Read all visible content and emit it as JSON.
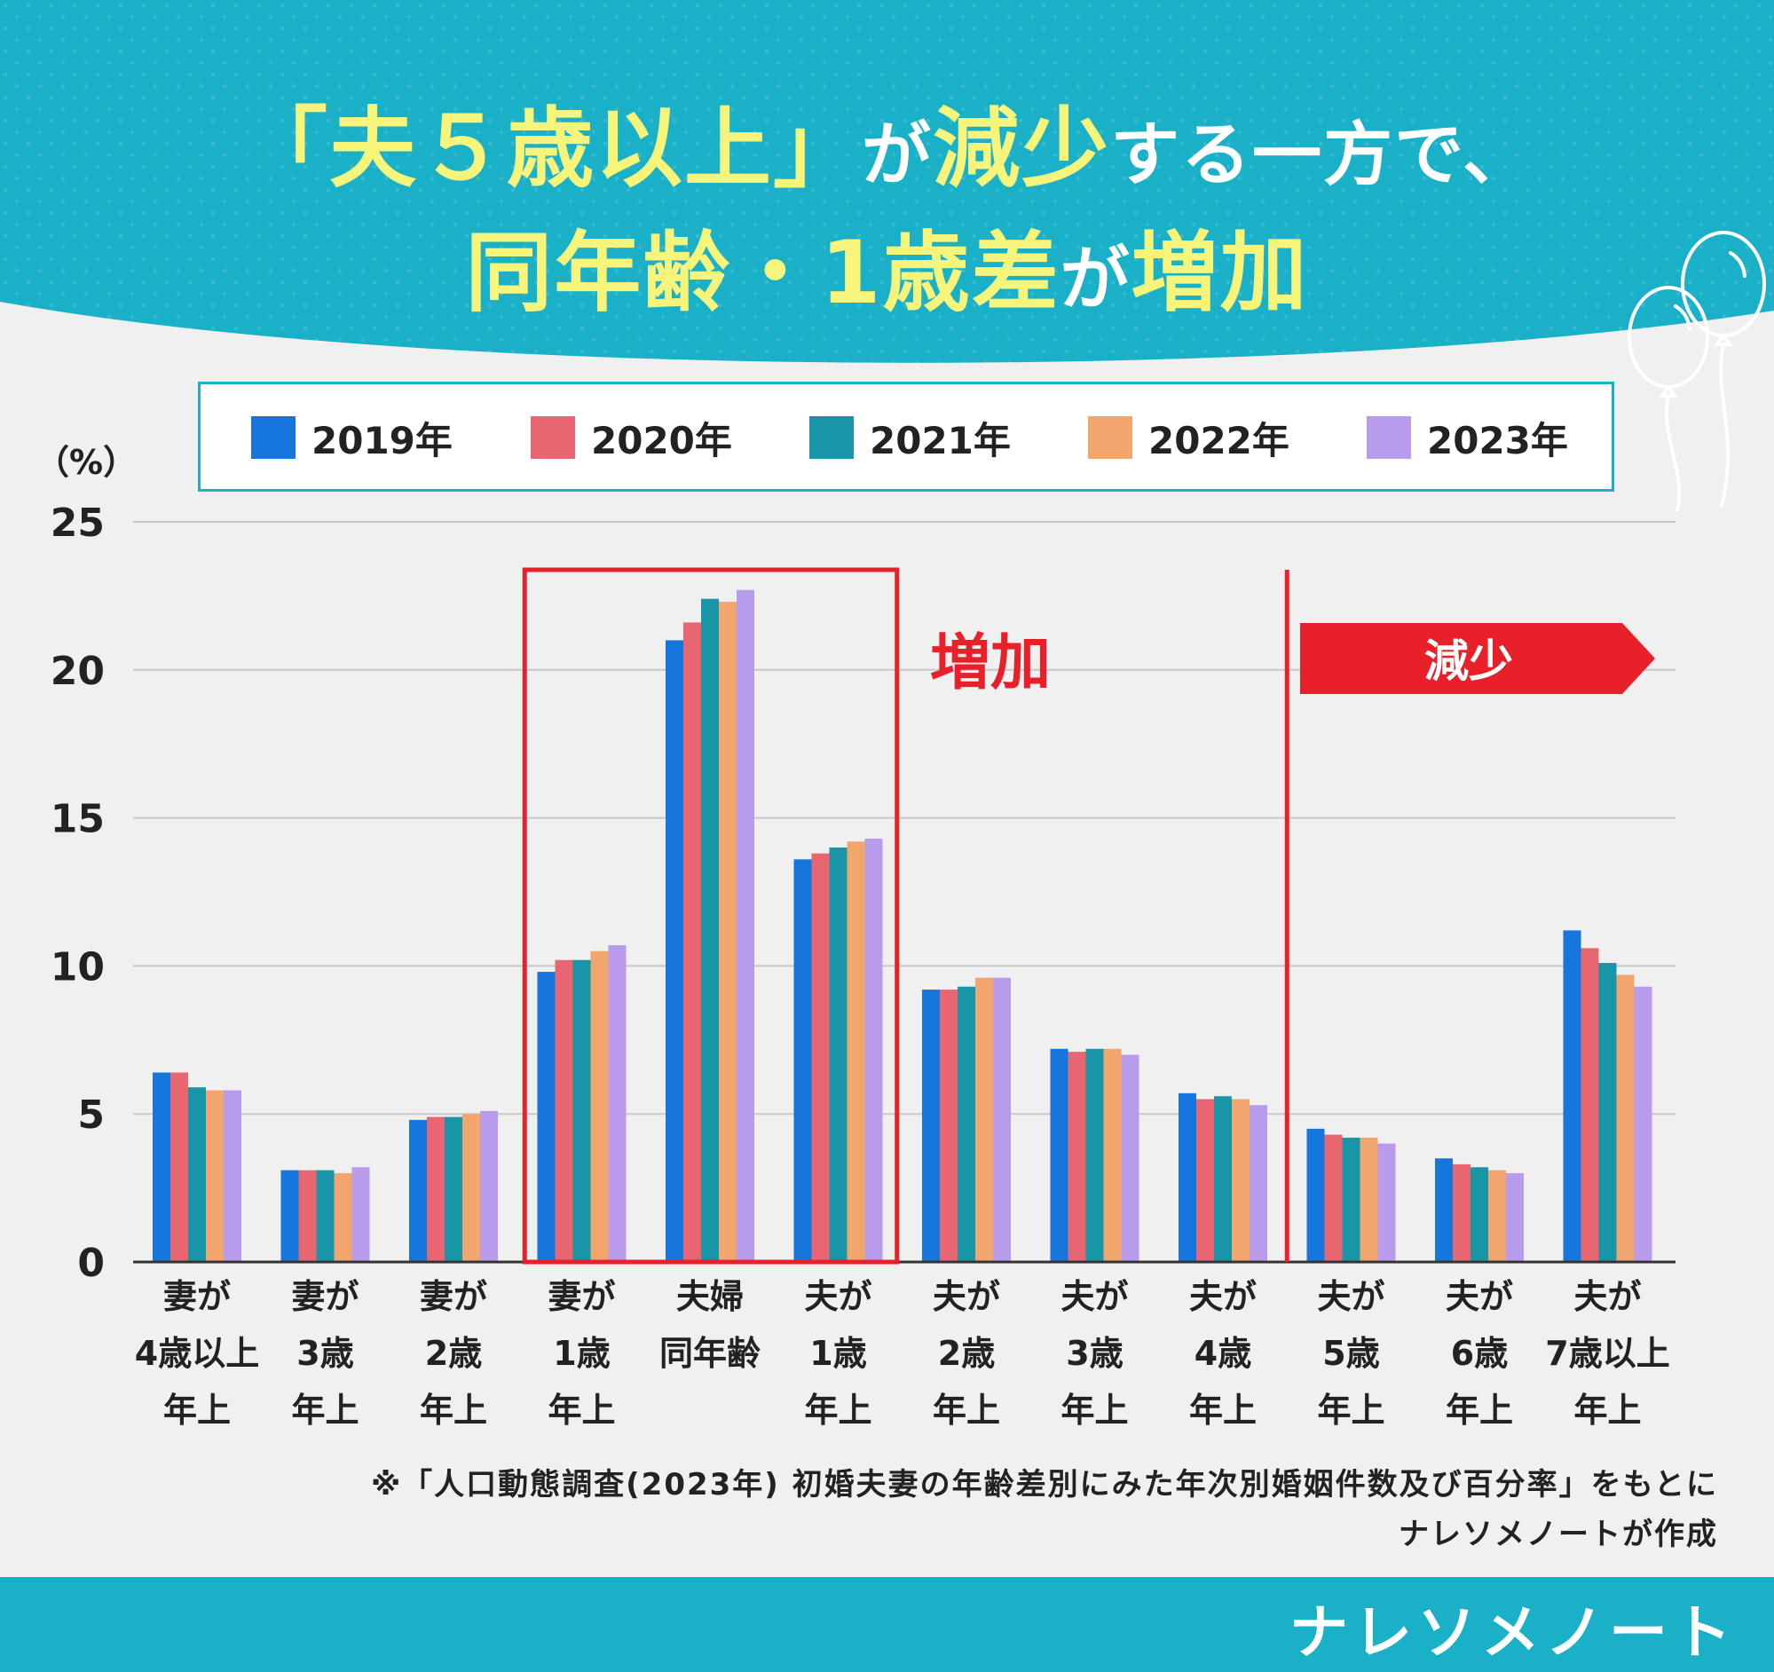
{
  "title": {
    "line1_part1": "「夫５歳以上」",
    "line1_part2": "が",
    "line1_part3": "減少",
    "line1_part4": "する一方で、",
    "line2_part1": "同年齢・1歳差",
    "line2_part2": "が",
    "line2_part3": "増加"
  },
  "colors": {
    "header": "#1ab0c8",
    "title_yellow": "#f6f47a",
    "highlight_red": "#e8202a",
    "series": [
      "#1676dc",
      "#e86672",
      "#1896a8",
      "#f2a66e",
      "#b89ceb"
    ]
  },
  "annotations": {
    "increase_label": "増加",
    "decrease_label": "減少"
  },
  "footer": {
    "note_line1": "※「人口動態調査(2023年) 初婚夫妻の年齢差別にみた年次別婚姻件数及び百分率」をもとに",
    "note_line2": "ナレソメノートが作成",
    "brand": "ナレソメノート"
  },
  "chart_data": {
    "type": "bar",
    "ylabel": "（%）",
    "ylim": [
      0,
      25
    ],
    "yticks": [
      0,
      5,
      10,
      15,
      20,
      25
    ],
    "grid": true,
    "legend_position": "top",
    "categories": [
      [
        "妻が",
        "4歳以上",
        "年上"
      ],
      [
        "妻が",
        "3歳",
        "年上"
      ],
      [
        "妻が",
        "2歳",
        "年上"
      ],
      [
        "妻が",
        "1歳",
        "年上"
      ],
      [
        "夫婦",
        "同年齢"
      ],
      [
        "夫が",
        "1歳",
        "年上"
      ],
      [
        "夫が",
        "2歳",
        "年上"
      ],
      [
        "夫が",
        "3歳",
        "年上"
      ],
      [
        "夫が",
        "4歳",
        "年上"
      ],
      [
        "夫が",
        "5歳",
        "年上"
      ],
      [
        "夫が",
        "6歳",
        "年上"
      ],
      [
        "夫が",
        "7歳以上",
        "年上"
      ]
    ],
    "series": [
      {
        "name": "2019年",
        "values": [
          6.4,
          3.1,
          4.8,
          9.8,
          21.0,
          13.6,
          9.2,
          7.2,
          5.7,
          4.5,
          3.5,
          11.2
        ]
      },
      {
        "name": "2020年",
        "values": [
          6.4,
          3.1,
          4.9,
          10.2,
          21.6,
          13.8,
          9.2,
          7.1,
          5.5,
          4.3,
          3.3,
          10.6
        ]
      },
      {
        "name": "2021年",
        "values": [
          5.9,
          3.1,
          4.9,
          10.2,
          22.4,
          14.0,
          9.3,
          7.2,
          5.6,
          4.2,
          3.2,
          10.1
        ]
      },
      {
        "name": "2022年",
        "values": [
          5.8,
          3.0,
          5.0,
          10.5,
          22.3,
          14.2,
          9.6,
          7.2,
          5.5,
          4.2,
          3.1,
          9.7
        ]
      },
      {
        "name": "2023年",
        "values": [
          5.8,
          3.2,
          5.1,
          10.7,
          22.7,
          14.3,
          9.6,
          7.0,
          5.3,
          4.0,
          3.0,
          9.3
        ]
      }
    ]
  }
}
